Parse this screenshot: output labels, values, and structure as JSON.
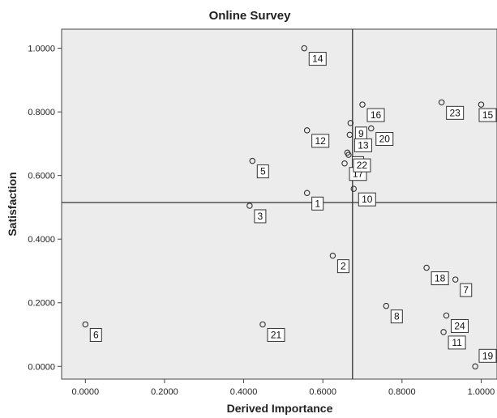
{
  "chart_data": {
    "type": "scatter",
    "title": "Online Survey",
    "xlabel": "Derived Importance",
    "ylabel": "Satisfaction",
    "xlim": [
      -0.06,
      1.04
    ],
    "ylim": [
      -0.04,
      1.06
    ],
    "x_ticks": [
      0.0,
      0.2,
      0.4,
      0.6,
      0.8,
      1.0
    ],
    "x_tick_labels": [
      "0.0000",
      "0.2000",
      "0.4000",
      "0.6000",
      "0.8000",
      "1.0000"
    ],
    "y_ticks": [
      0.0,
      0.2,
      0.4,
      0.6,
      0.8,
      1.0
    ],
    "y_tick_labels": [
      "0.0000",
      "0.2000",
      "0.4000",
      "0.6000",
      "0.8000",
      "1.0000"
    ],
    "reference_lines": {
      "x": 0.675,
      "y": 0.515
    },
    "grid": false,
    "background_color": "#ececec",
    "points": [
      {
        "label": "1",
        "x": 0.56,
        "y": 0.545
      },
      {
        "label": "2",
        "x": 0.625,
        "y": 0.348
      },
      {
        "label": "3",
        "x": 0.415,
        "y": 0.505
      },
      {
        "label": "4",
        "x": 0.662,
        "y": 0.672
      },
      {
        "label": "5",
        "x": 0.422,
        "y": 0.646
      },
      {
        "label": "6",
        "x": 0.0,
        "y": 0.132
      },
      {
        "label": "7",
        "x": 0.935,
        "y": 0.273
      },
      {
        "label": "8",
        "x": 0.76,
        "y": 0.19
      },
      {
        "label": "9",
        "x": 0.67,
        "y": 0.765
      },
      {
        "label": "10",
        "x": 0.678,
        "y": 0.558
      },
      {
        "label": "11",
        "x": 0.905,
        "y": 0.108
      },
      {
        "label": "12",
        "x": 0.56,
        "y": 0.742
      },
      {
        "label": "13",
        "x": 0.668,
        "y": 0.728
      },
      {
        "label": "14",
        "x": 0.553,
        "y": 1.0
      },
      {
        "label": "15",
        "x": 1.0,
        "y": 0.823
      },
      {
        "label": "16",
        "x": 0.7,
        "y": 0.823
      },
      {
        "label": "17",
        "x": 0.655,
        "y": 0.638
      },
      {
        "label": "18",
        "x": 0.862,
        "y": 0.31
      },
      {
        "label": "19",
        "x": 0.985,
        "y": 0.0
      },
      {
        "label": "20",
        "x": 0.722,
        "y": 0.748
      },
      {
        "label": "21",
        "x": 0.448,
        "y": 0.132
      },
      {
        "label": "22",
        "x": 0.665,
        "y": 0.665
      },
      {
        "label": "23",
        "x": 0.9,
        "y": 0.83
      },
      {
        "label": "24",
        "x": 0.912,
        "y": 0.16
      }
    ]
  }
}
